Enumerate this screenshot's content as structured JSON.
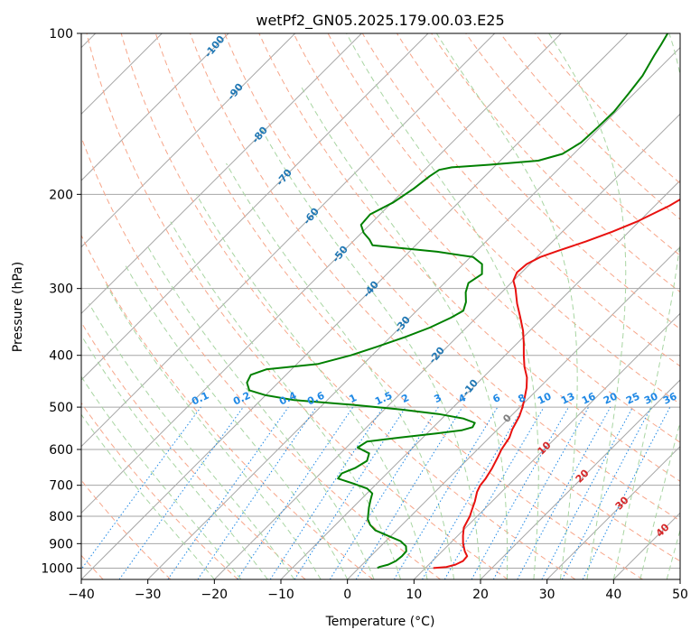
{
  "chart_data": {
    "type": "line",
    "title": "wetPf2_GN05.2025.179.00.03.E25",
    "xlabel": "Temperature (°C)",
    "ylabel": "Pressure (hPa)",
    "xlim": [
      -40,
      50
    ],
    "ylim": [
      1050,
      100
    ],
    "yscale": "log",
    "skew": true,
    "grid": true,
    "x_ticks": [
      -40,
      -30,
      -20,
      -10,
      0,
      10,
      20,
      30,
      40,
      50
    ],
    "y_ticks": [
      1000,
      900,
      800,
      700,
      600,
      500,
      400,
      300,
      200,
      100
    ],
    "series": [
      {
        "color": "#e8110f",
        "points": [
          [
            1000,
            11.2
          ],
          [
            995,
            13.0
          ],
          [
            985,
            14.0
          ],
          [
            970,
            14.6
          ],
          [
            950,
            14.5
          ],
          [
            930,
            13.4
          ],
          [
            900,
            12.0
          ],
          [
            870,
            10.8
          ],
          [
            840,
            9.7
          ],
          [
            820,
            9.3
          ],
          [
            800,
            8.9
          ],
          [
            780,
            8.3
          ],
          [
            750,
            7.4
          ],
          [
            720,
            6.3
          ],
          [
            700,
            5.8
          ],
          [
            680,
            5.6
          ],
          [
            650,
            5.0
          ],
          [
            620,
            4.2
          ],
          [
            600,
            3.6
          ],
          [
            570,
            3.0
          ],
          [
            550,
            2.2
          ],
          [
            520,
            1.3
          ],
          [
            500,
            0.4
          ],
          [
            480,
            -0.7
          ],
          [
            460,
            -1.9
          ],
          [
            440,
            -3.4
          ],
          [
            420,
            -5.4
          ],
          [
            400,
            -7.2
          ],
          [
            380,
            -9.0
          ],
          [
            360,
            -11.0
          ],
          [
            340,
            -13.4
          ],
          [
            320,
            -16.0
          ],
          [
            300,
            -18.5
          ],
          [
            290,
            -20.0
          ],
          [
            280,
            -20.7
          ],
          [
            270,
            -20.5
          ],
          [
            262,
            -19.5
          ],
          [
            255,
            -17.8
          ],
          [
            245,
            -15.0
          ],
          [
            235,
            -12.5
          ],
          [
            225,
            -10.3
          ],
          [
            210,
            -7.8
          ],
          [
            200,
            -6.6
          ],
          [
            190,
            -5.7
          ],
          [
            180,
            -5.2
          ],
          [
            170,
            -4.8
          ],
          [
            160,
            -4.7
          ],
          [
            150,
            -4.2
          ],
          [
            140,
            -3.5
          ],
          [
            130,
            -2.2
          ],
          [
            120,
            -1.4
          ],
          [
            110,
            -1.4
          ],
          [
            104,
            -1.8
          ],
          [
            100,
            -2.2
          ]
        ]
      },
      {
        "color": "#008000",
        "points": [
          [
            1000,
            2.8
          ],
          [
            995,
            2.9
          ],
          [
            985,
            3.9
          ],
          [
            970,
            4.5
          ],
          [
            950,
            4.7
          ],
          [
            930,
            4.6
          ],
          [
            910,
            3.8
          ],
          [
            890,
            2.2
          ],
          [
            870,
            -0.5
          ],
          [
            850,
            -3.2
          ],
          [
            830,
            -4.8
          ],
          [
            810,
            -6.0
          ],
          [
            790,
            -6.8
          ],
          [
            770,
            -7.6
          ],
          [
            745,
            -8.5
          ],
          [
            725,
            -9.2
          ],
          [
            710,
            -10.7
          ],
          [
            695,
            -13.5
          ],
          [
            680,
            -16.6
          ],
          [
            665,
            -16.8
          ],
          [
            650,
            -15.6
          ],
          [
            630,
            -14.9
          ],
          [
            610,
            -15.7
          ],
          [
            595,
            -18.3
          ],
          [
            580,
            -17.8
          ],
          [
            570,
            -13.4
          ],
          [
            560,
            -8.6
          ],
          [
            552,
            -5.2
          ],
          [
            545,
            -4.1
          ],
          [
            535,
            -4.4
          ],
          [
            525,
            -6.8
          ],
          [
            515,
            -11.2
          ],
          [
            505,
            -17.5
          ],
          [
            495,
            -25.5
          ],
          [
            485,
            -35.0
          ],
          [
            475,
            -40.0
          ],
          [
            465,
            -43.2
          ],
          [
            450,
            -44.7
          ],
          [
            435,
            -45.3
          ],
          [
            425,
            -43.8
          ],
          [
            415,
            -36.8
          ],
          [
            400,
            -33.2
          ],
          [
            385,
            -30.5
          ],
          [
            370,
            -27.8
          ],
          [
            355,
            -25.5
          ],
          [
            340,
            -23.8
          ],
          [
            330,
            -23.0
          ],
          [
            318,
            -23.9
          ],
          [
            305,
            -25.4
          ],
          [
            293,
            -26.4
          ],
          [
            282,
            -25.7
          ],
          [
            270,
            -27.2
          ],
          [
            262,
            -29.6
          ],
          [
            256,
            -35.8
          ],
          [
            252,
            -42.0
          ],
          [
            249,
            -46.5
          ],
          [
            243,
            -47.8
          ],
          [
            236,
            -49.7
          ],
          [
            228,
            -51.3
          ],
          [
            218,
            -51.5
          ],
          [
            207,
            -49.8
          ],
          [
            195,
            -48.8
          ],
          [
            185,
            -48.3
          ],
          [
            180,
            -47.8
          ],
          [
            178,
            -46.3
          ],
          [
            176,
            -41.0
          ],
          [
            173,
            -34.3
          ],
          [
            168,
            -31.7
          ],
          [
            160,
            -30.6
          ],
          [
            150,
            -30.4
          ],
          [
            140,
            -30.3
          ],
          [
            130,
            -30.8
          ],
          [
            120,
            -31.4
          ],
          [
            110,
            -32.7
          ],
          [
            105,
            -33.3
          ],
          [
            100,
            -34.0
          ]
        ]
      }
    ],
    "dry_adiabats": {
      "values": [
        -100,
        -90,
        -80,
        -70,
        -60,
        -50,
        -40,
        -30,
        -20,
        -10
      ],
      "labels": [
        "-100",
        "-90",
        "-80",
        "-70",
        "-60",
        "-50",
        "-40",
        "-30",
        "-20",
        "-10"
      ]
    },
    "moist_adiabat_labels": [
      "0",
      "10",
      "20",
      "30",
      "40"
    ],
    "mixing_ratio_labels": [
      "0.1",
      "0.2",
      "0.4",
      "0.6",
      "1",
      "1.5",
      "2",
      "3",
      "4",
      "6",
      "8",
      "10",
      "13",
      "16",
      "20",
      "25",
      "30",
      "36"
    ],
    "mixing_ratio_values": [
      0.1,
      0.2,
      0.4,
      0.6,
      1,
      1.5,
      2,
      3,
      4,
      6,
      8,
      10,
      13,
      16,
      20,
      25,
      30,
      36
    ]
  },
  "colors": {
    "temperature": "#e8110f",
    "dewpoint": "#008000",
    "isotherm_grid": "#a6a6a6",
    "dry_adiabat": "#f7a68a",
    "moist_adiabat": "#a8d5a2",
    "mixing_ratio": "#1e88e5",
    "adiabat_label": "#1f77b4"
  }
}
